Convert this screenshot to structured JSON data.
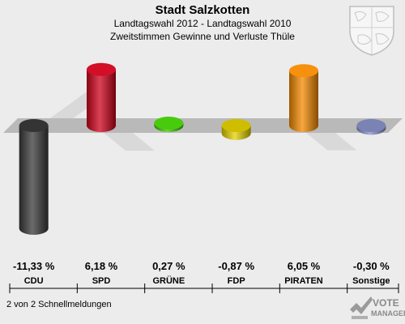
{
  "header": {
    "title": "Stadt Salzkotten",
    "subtitle1": "Landtagswahl 2012 - Landtagswahl 2010",
    "subtitle2": "Zweitstimmen Gewinne und Verluste Thüle"
  },
  "footer": {
    "note": "2 von 2 Schnellmeldungen",
    "logo_line1": "VOTE",
    "logo_line2": "MANAGER"
  },
  "chart_data": {
    "type": "bar",
    "title": "Stadt Salzkotten",
    "subtitle": "Landtagswahl 2012 - Landtagswahl 2010 / Zweitstimmen Gewinne und Verluste Thüle",
    "categories": [
      "CDU",
      "SPD",
      "GRÜNE",
      "FDP",
      "PIRATEN",
      "Sonstige"
    ],
    "values": [
      -11.33,
      6.18,
      0.27,
      -0.87,
      6.05,
      -0.3
    ],
    "value_labels": [
      "-11,33 %",
      "6,18 %",
      "0,27 %",
      "-0,87 %",
      "6,05 %",
      "-0,30 %"
    ],
    "colors": [
      "#3a3a3a",
      "#d0021b",
      "#3ec800",
      "#e6d200",
      "#f58a00",
      "#8892c8"
    ],
    "ylim": [
      -12,
      12
    ],
    "grid": false,
    "legend": "none"
  }
}
